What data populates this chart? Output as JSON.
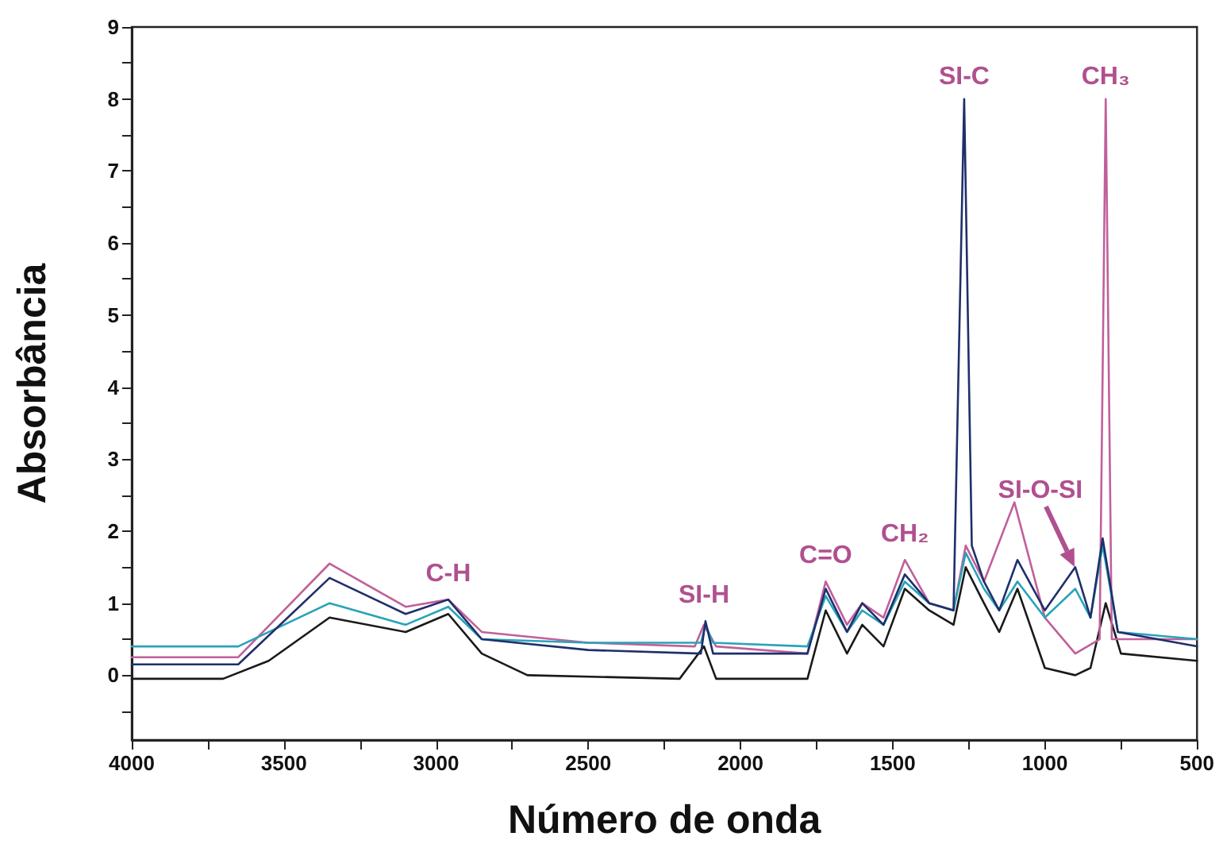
{
  "chart_data": {
    "type": "line",
    "xlabel": "Número de onda",
    "ylabel": "Absorbância",
    "xlim": [
      4000,
      500
    ],
    "ylim": [
      -0.9,
      9
    ],
    "xticks": [
      4000,
      {
        "value": 3750,
        "label": null
      },
      3500,
      {
        "value": 3250,
        "label": null
      },
      3000,
      {
        "value": 2750,
        "label": null
      },
      2500,
      {
        "value": 2250,
        "label": null
      },
      2000,
      {
        "value": 1750,
        "label": null
      },
      1500,
      {
        "value": 1250,
        "label": null
      },
      1000,
      {
        "value": 750,
        "label": null
      },
      500
    ],
    "yticks": [
      {
        "value": -0.5,
        "label": null
      },
      0,
      {
        "value": 0.5,
        "label": null
      },
      1,
      {
        "value": 1.5,
        "label": null
      },
      2,
      {
        "value": 2.5,
        "label": null
      },
      3,
      {
        "value": 3.5,
        "label": null
      },
      4,
      {
        "value": 4.5,
        "label": null
      },
      5,
      {
        "value": 5.5,
        "label": null
      },
      6,
      {
        "value": 6.5,
        "label": null
      },
      7,
      {
        "value": 7.5,
        "label": null
      },
      8,
      {
        "value": 8.5,
        "label": null
      },
      9
    ],
    "grid": false,
    "marker": "none",
    "line_style": "solid",
    "series": [
      {
        "color": "#1a1a1a",
        "x": [
          4000,
          3700,
          3550,
          3350,
          3100,
          2960,
          2850,
          2700,
          2200,
          2120,
          2080,
          1780,
          1720,
          1650,
          1600,
          1530,
          1460,
          1380,
          1300,
          1260,
          1200,
          1150,
          1090,
          1000,
          900,
          850,
          800,
          750,
          500
        ],
        "values": [
          -0.05,
          -0.05,
          0.2,
          0.8,
          0.6,
          0.85,
          0.3,
          0.0,
          -0.05,
          0.4,
          -0.05,
          -0.05,
          0.9,
          0.3,
          0.7,
          0.4,
          1.2,
          0.9,
          0.7,
          1.5,
          1.0,
          0.6,
          1.2,
          0.1,
          0.0,
          0.1,
          1.0,
          0.3,
          0.2
        ]
      },
      {
        "color": "#c0609a",
        "x": [
          4000,
          3650,
          3350,
          3100,
          2960,
          2850,
          2500,
          2150,
          2120,
          2080,
          1780,
          1720,
          1650,
          1600,
          1530,
          1460,
          1380,
          1300,
          1260,
          1200,
          1100,
          1000,
          900,
          820,
          800,
          780,
          500
        ],
        "values": [
          0.25,
          0.25,
          1.55,
          0.95,
          1.05,
          0.6,
          0.45,
          0.4,
          0.7,
          0.4,
          0.3,
          1.3,
          0.7,
          1.0,
          0.8,
          1.6,
          1.0,
          0.9,
          1.8,
          1.3,
          2.4,
          0.8,
          0.3,
          0.5,
          8.0,
          0.5,
          0.5
        ]
      },
      {
        "color": "#2aa3b8",
        "x": [
          4000,
          3650,
          3350,
          3100,
          2960,
          2850,
          2500,
          2130,
          2115,
          2090,
          1780,
          1720,
          1650,
          1600,
          1530,
          1460,
          1380,
          1300,
          1260,
          1200,
          1150,
          1090,
          1000,
          900,
          850,
          810,
          760,
          500
        ],
        "values": [
          0.4,
          0.4,
          1.0,
          0.7,
          0.95,
          0.5,
          0.45,
          0.45,
          0.7,
          0.45,
          0.4,
          1.1,
          0.6,
          0.9,
          0.7,
          1.3,
          1.0,
          0.9,
          1.7,
          1.2,
          0.9,
          1.3,
          0.8,
          1.2,
          0.8,
          1.8,
          0.6,
          0.5
        ]
      },
      {
        "color": "#1f2f6b",
        "x": [
          4000,
          3650,
          3350,
          3100,
          2960,
          2850,
          2500,
          2130,
          2115,
          2090,
          1780,
          1720,
          1650,
          1600,
          1530,
          1460,
          1380,
          1300,
          1265,
          1240,
          1200,
          1150,
          1090,
          1000,
          900,
          850,
          810,
          760,
          500
        ],
        "values": [
          0.15,
          0.15,
          1.35,
          0.85,
          1.05,
          0.5,
          0.35,
          0.3,
          0.75,
          0.3,
          0.3,
          1.2,
          0.6,
          1.0,
          0.7,
          1.4,
          1.0,
          0.9,
          8.0,
          1.8,
          1.3,
          0.9,
          1.6,
          0.9,
          1.5,
          0.8,
          1.9,
          0.6,
          0.4
        ]
      }
    ],
    "annotations": [
      {
        "text": "C-H",
        "x": 2960,
        "y": 1.1
      },
      {
        "text": "SI-H",
        "x": 2120,
        "y": 0.8
      },
      {
        "text": "C=O",
        "x": 1720,
        "y": 1.35
      },
      {
        "text": "CH₂",
        "x": 1460,
        "y": 1.65
      },
      {
        "text": "SI-C",
        "x": 1265,
        "y": 8.0
      },
      {
        "text": "CH₃",
        "x": 800,
        "y": 8.0
      },
      {
        "text": "SI-O-SI",
        "x": 900,
        "y": 1.5
      }
    ]
  }
}
